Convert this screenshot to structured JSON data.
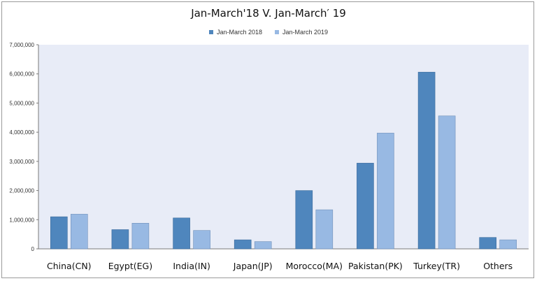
{
  "chart_data": {
    "type": "bar",
    "title": "Jan-March'18 V. Jan-March′ 19",
    "categories": [
      "China(CN)",
      "Egypt(EG)",
      "India(IN)",
      "Japan(JP)",
      "Morocco(MA)",
      "Pakistan(PK)",
      "Turkey(TR)",
      "Others"
    ],
    "series": [
      {
        "name": "Jan-March 2018",
        "values": [
          1100000,
          660000,
          1060000,
          310000,
          2000000,
          2940000,
          6060000,
          390000
        ]
      },
      {
        "name": "Jan-March 2019",
        "values": [
          1190000,
          880000,
          630000,
          250000,
          1340000,
          3970000,
          4560000,
          310000
        ]
      }
    ],
    "ylim": [
      0,
      7000000
    ],
    "yticks": [
      "0",
      "1,000,000",
      "2,000,000",
      "3,000,000",
      "4,000,000",
      "5,000,000",
      "6,000,000",
      "7,000,000"
    ],
    "legend_position": "top-center",
    "colors": {
      "series_2018": "#4f86bd",
      "series_2019": "#98b9e3",
      "plot_background": "#e8ecf7"
    },
    "xlabel": "",
    "ylabel": ""
  }
}
